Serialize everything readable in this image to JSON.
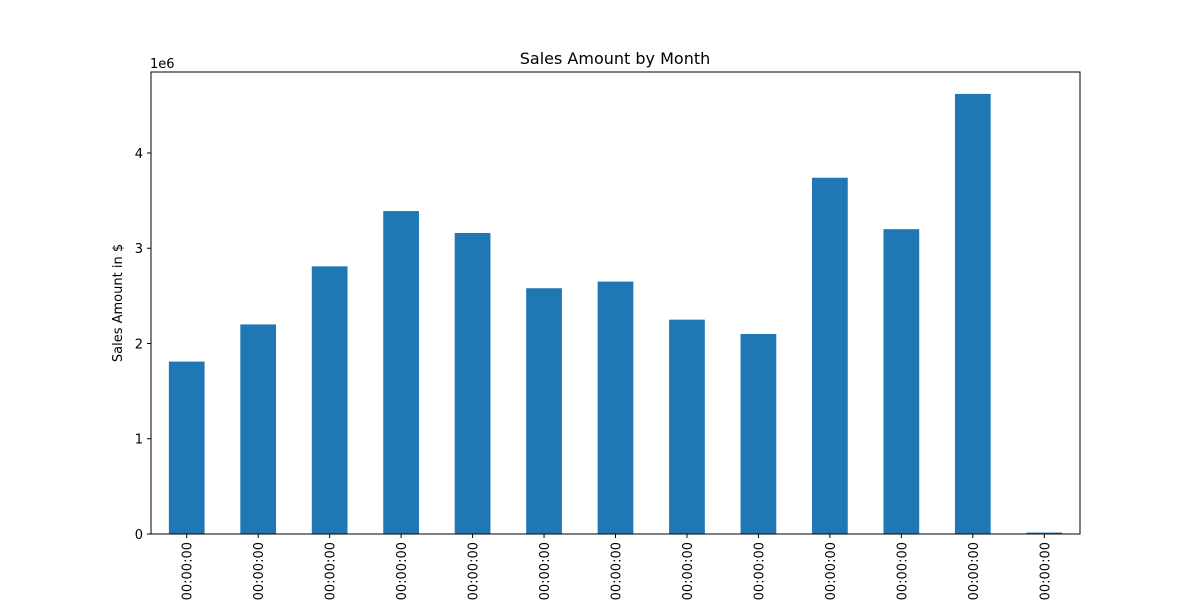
{
  "chart_data": {
    "type": "bar",
    "title": "Sales Amount by Month",
    "xlabel": "",
    "ylabel": "Sales Amount in $",
    "offset_label": "1e6",
    "categories": [
      "00:00:00",
      "00:00:00",
      "00:00:00",
      "00:00:00",
      "00:00:00",
      "00:00:00",
      "00:00:00",
      "00:00:00",
      "00:00:00",
      "00:00:00",
      "00:00:00",
      "00:00:00",
      "00:00:00"
    ],
    "values": [
      1810000,
      2200000,
      2810000,
      3390000,
      3160000,
      2580000,
      2650000,
      2250000,
      2100000,
      3740000,
      3200000,
      4620000,
      15000
    ],
    "ylim": [
      0,
      4850000
    ],
    "yticks": [
      0,
      1000000,
      2000000,
      3000000,
      4000000
    ],
    "ytick_labels": [
      "0",
      "1",
      "2",
      "3",
      "4"
    ],
    "grid": false,
    "bar_color": "#1f77b4"
  }
}
